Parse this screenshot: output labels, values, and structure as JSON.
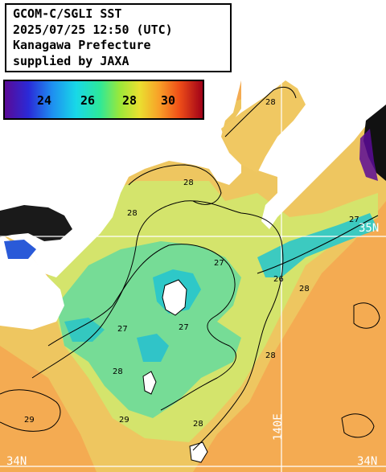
{
  "header": {
    "line1": "GCOM-C/SGLI SST",
    "line2": "2025/07/25 12:50 (UTC)",
    "line3": "Kanagawa Prefecture",
    "line4": "supplied by JAXA"
  },
  "scale": {
    "ticks": [
      "24",
      "26",
      "28",
      "30"
    ],
    "colors": [
      "#5a0a96",
      "#2a2ad8",
      "#1e8ff0",
      "#18d8e8",
      "#2de89a",
      "#9ae83a",
      "#eae030",
      "#f8a028",
      "#f05018",
      "#d01810",
      "#a00018"
    ]
  },
  "grid_labels": {
    "lat_35n": "35N",
    "lat_34n": "34N",
    "lon_140e": "140E",
    "lat_left": "34N"
  },
  "contours": {
    "label_26": "26",
    "label_27": "27",
    "label_28": "28",
    "label_29": "29"
  },
  "colors": {
    "land": "#ffffff",
    "sea_warm": "#f5ab4e",
    "sea_mid": "#f0c85a",
    "sea_cool": "#cde86a",
    "sea_cold": "#6de0a0",
    "sea_coldest": "#2ec8c0",
    "grid": "#ffffff"
  }
}
